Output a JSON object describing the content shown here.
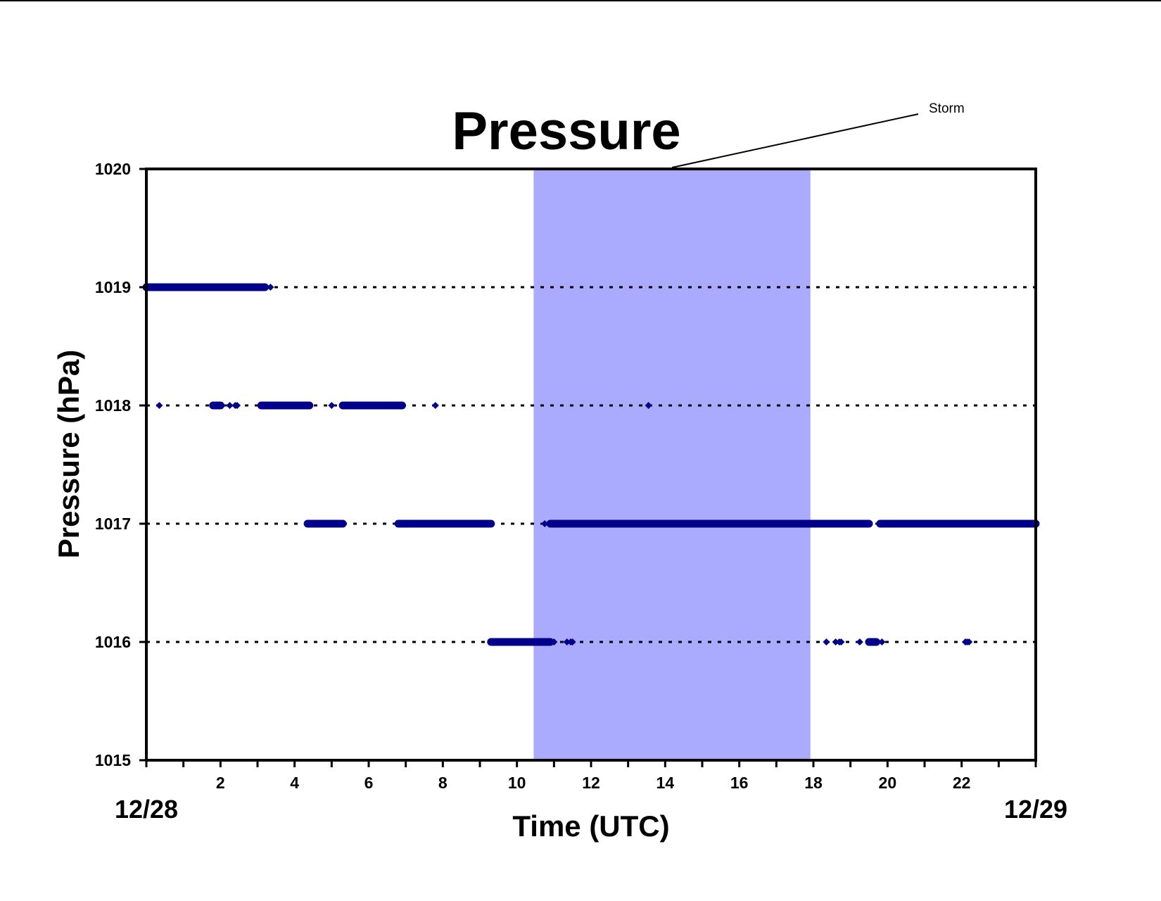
{
  "chart_data": {
    "type": "scatter",
    "title": "Pressure",
    "xlabel": "Time (UTC)",
    "ylabel": "Pressure (hPa)",
    "xlim": [
      0,
      24
    ],
    "ylim": [
      1015,
      1020
    ],
    "x_ticks": [
      2,
      4,
      6,
      8,
      10,
      12,
      14,
      16,
      18,
      20,
      22
    ],
    "x_minor_step": 1,
    "y_ticks": [
      1015,
      1016,
      1017,
      1018,
      1019,
      1020
    ],
    "date_labels": [
      {
        "x": 0,
        "label": "12/28"
      },
      {
        "x": 24,
        "label": "12/29"
      }
    ],
    "gridlines": {
      "y": [
        1016,
        1017,
        1018,
        1019
      ],
      "style": "dotted"
    },
    "annotation": {
      "label": "Storm",
      "xrange": [
        10.45,
        17.92
      ],
      "color": "#aaaaff"
    },
    "series": [
      {
        "color": "#00008b",
        "segments": [
          {
            "y": 1019,
            "from": 0.0,
            "to": 3.2
          },
          {
            "y": 1018,
            "from": 1.8,
            "to": 2.0
          },
          {
            "y": 1018,
            "from": 3.1,
            "to": 4.4
          },
          {
            "y": 1018,
            "from": 5.3,
            "to": 6.9
          },
          {
            "y": 1017,
            "from": 4.35,
            "to": 5.3
          },
          {
            "y": 1017,
            "from": 6.8,
            "to": 9.3
          },
          {
            "y": 1017,
            "from": 10.9,
            "to": 19.5
          },
          {
            "y": 1017,
            "from": 19.8,
            "to": 24.0
          },
          {
            "y": 1016,
            "from": 9.3,
            "to": 10.9
          },
          {
            "y": 1016,
            "from": 19.5,
            "to": 19.7
          }
        ],
        "points": [
          {
            "x": 3.35,
            "y": 1019
          },
          {
            "x": 0.35,
            "y": 1018
          },
          {
            "x": 2.05,
            "y": 1018
          },
          {
            "x": 2.25,
            "y": 1018
          },
          {
            "x": 2.4,
            "y": 1018
          },
          {
            "x": 2.45,
            "y": 1018
          },
          {
            "x": 5.0,
            "y": 1018
          },
          {
            "x": 7.8,
            "y": 1018
          },
          {
            "x": 13.55,
            "y": 1018
          },
          {
            "x": 10.75,
            "y": 1017
          },
          {
            "x": 11.0,
            "y": 1016
          },
          {
            "x": 11.35,
            "y": 1016
          },
          {
            "x": 11.45,
            "y": 1016
          },
          {
            "x": 11.5,
            "y": 1016
          },
          {
            "x": 18.35,
            "y": 1016
          },
          {
            "x": 18.6,
            "y": 1016
          },
          {
            "x": 18.7,
            "y": 1016
          },
          {
            "x": 18.75,
            "y": 1016
          },
          {
            "x": 19.25,
            "y": 1016
          },
          {
            "x": 19.85,
            "y": 1016
          },
          {
            "x": 22.1,
            "y": 1016
          },
          {
            "x": 22.15,
            "y": 1016
          },
          {
            "x": 22.2,
            "y": 1016
          }
        ]
      }
    ]
  }
}
